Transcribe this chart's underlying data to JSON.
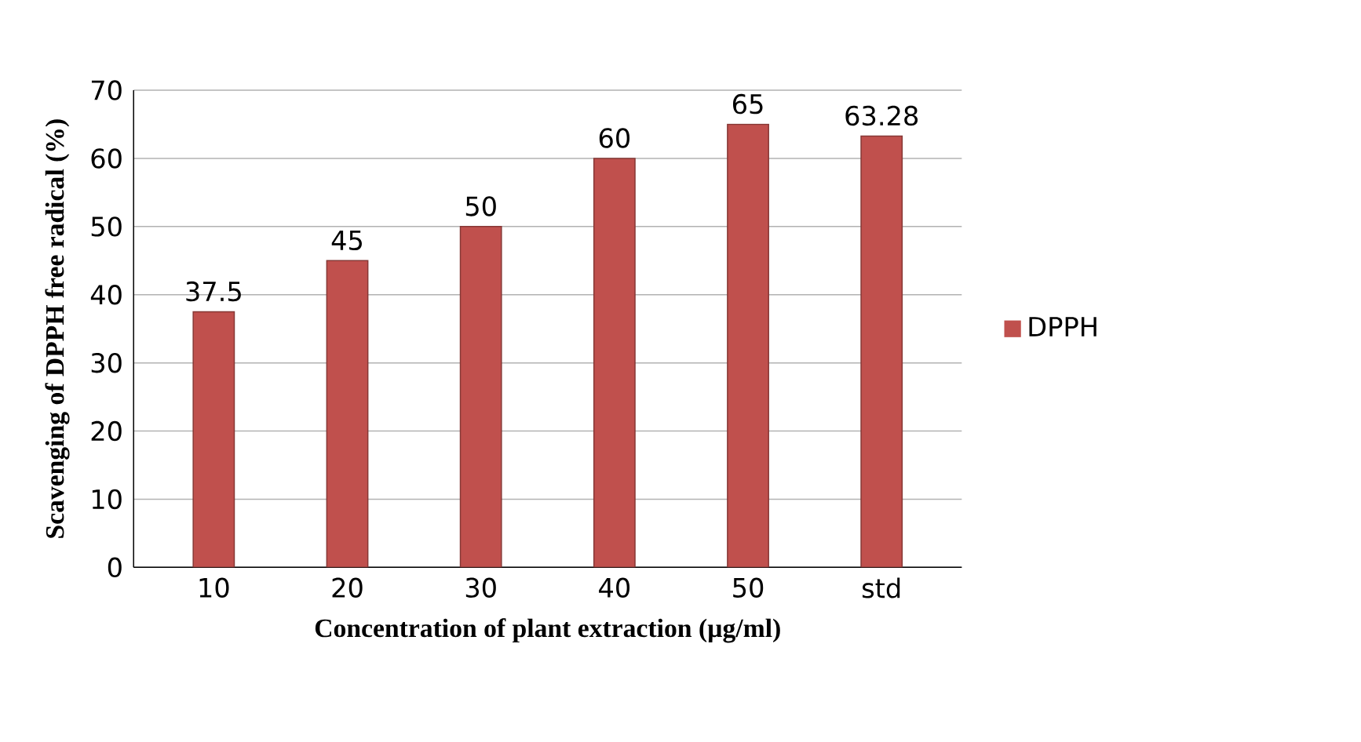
{
  "chart_data": {
    "type": "bar",
    "xlabel": "Concentration of plant extraction (µg/ml)",
    "ylabel": "Scavenging  of DPPH free radical (%)",
    "categories": [
      "10",
      "20",
      "30",
      "40",
      "50",
      "std"
    ],
    "series": [
      {
        "name": "DPPH",
        "color": "#c0504d",
        "values": [
          37.5,
          45,
          50,
          60,
          65,
          63.28
        ]
      }
    ],
    "ylim": [
      0,
      70
    ],
    "yticks": [
      0,
      10,
      20,
      30,
      40,
      50,
      60,
      70
    ],
    "grid": "y",
    "legend": "right",
    "data_labels": true
  }
}
